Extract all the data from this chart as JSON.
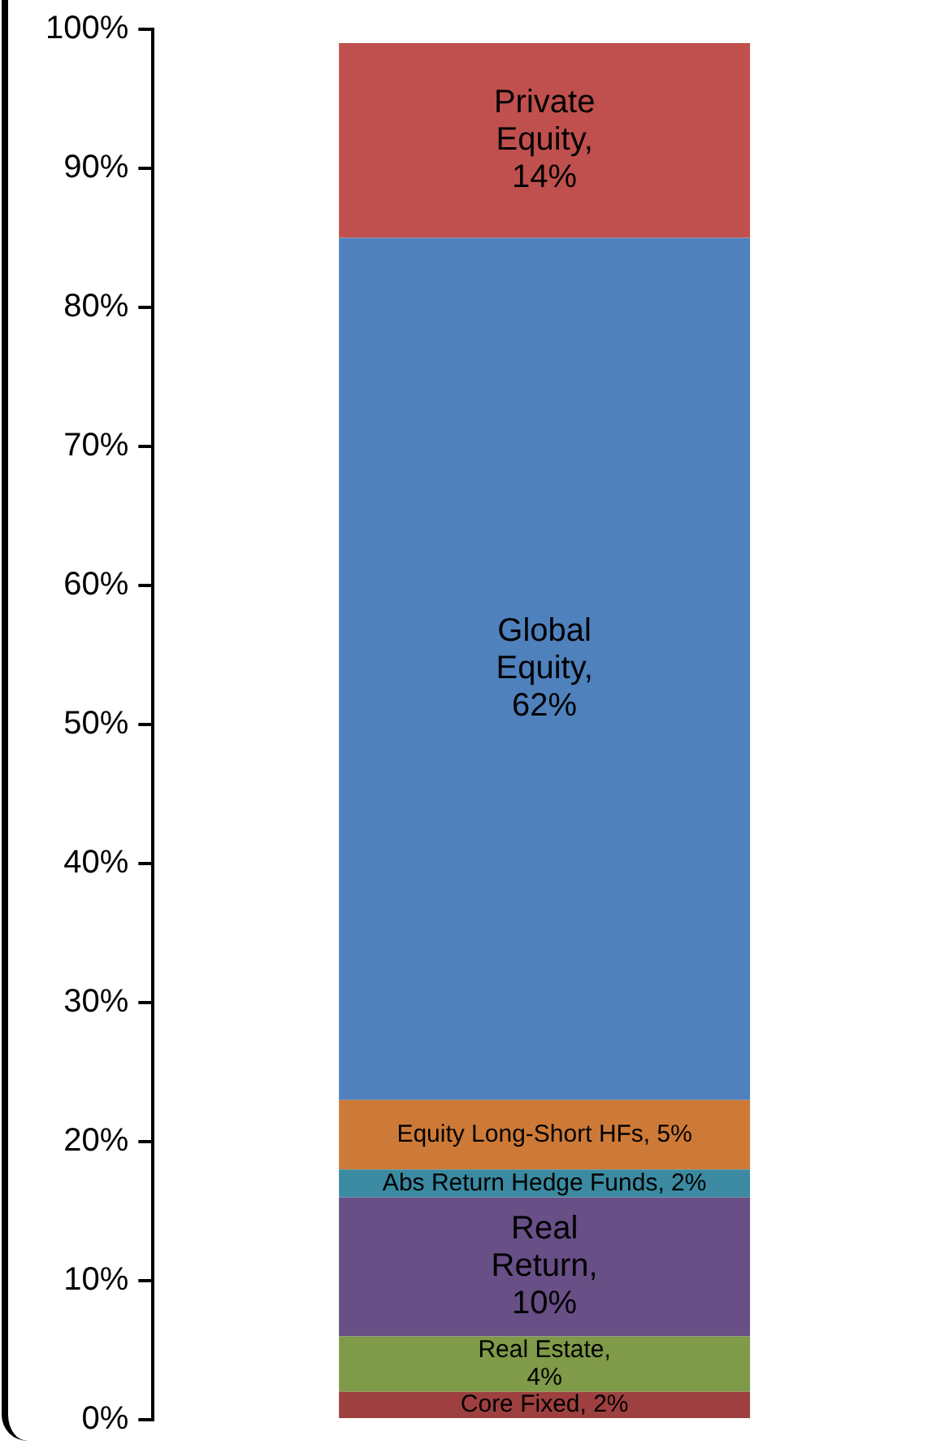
{
  "chart_data": {
    "type": "bar",
    "stacked": true,
    "categories": [
      null
    ],
    "series": [
      {
        "color": "#9e403f",
        "values": [
          2
        ],
        "value_labels": [
          "Core Fixed, 2%"
        ]
      },
      {
        "color": "#7f9a48",
        "values": [
          4
        ],
        "value_labels": [
          "Real Estate, 4%"
        ]
      },
      {
        "color": "#684f86",
        "values": [
          10
        ],
        "value_labels": [
          "Real Return, 10%"
        ]
      },
      {
        "color": "#3b8aa1",
        "values": [
          2
        ],
        "value_labels": [
          "Abs Return Hedge Funds, 2%"
        ]
      },
      {
        "color": "#cd7a38",
        "values": [
          5
        ],
        "value_labels": [
          "Equity Long-Short HFs, 5%"
        ]
      },
      {
        "color": "#4f81bd",
        "values": [
          62
        ],
        "value_labels": [
          "Global Equity, 62%"
        ]
      },
      {
        "color": "#c0504d",
        "values": [
          14
        ],
        "value_labels": [
          "Private Equity, 14%"
        ]
      }
    ],
    "ylim": [
      0,
      100
    ],
    "yticks": [
      {
        "value": 0,
        "label": "0%"
      },
      {
        "value": 10,
        "label": "10%"
      },
      {
        "value": 20,
        "label": "20%"
      },
      {
        "value": 30,
        "label": "30%"
      },
      {
        "value": 40,
        "label": "40%"
      },
      {
        "value": 50,
        "label": "50%"
      },
      {
        "value": 60,
        "label": "60%"
      },
      {
        "value": 70,
        "label": "70%"
      },
      {
        "value": 80,
        "label": "80%"
      },
      {
        "value": 90,
        "label": "90%"
      },
      {
        "value": 100,
        "label": "100%"
      }
    ]
  }
}
